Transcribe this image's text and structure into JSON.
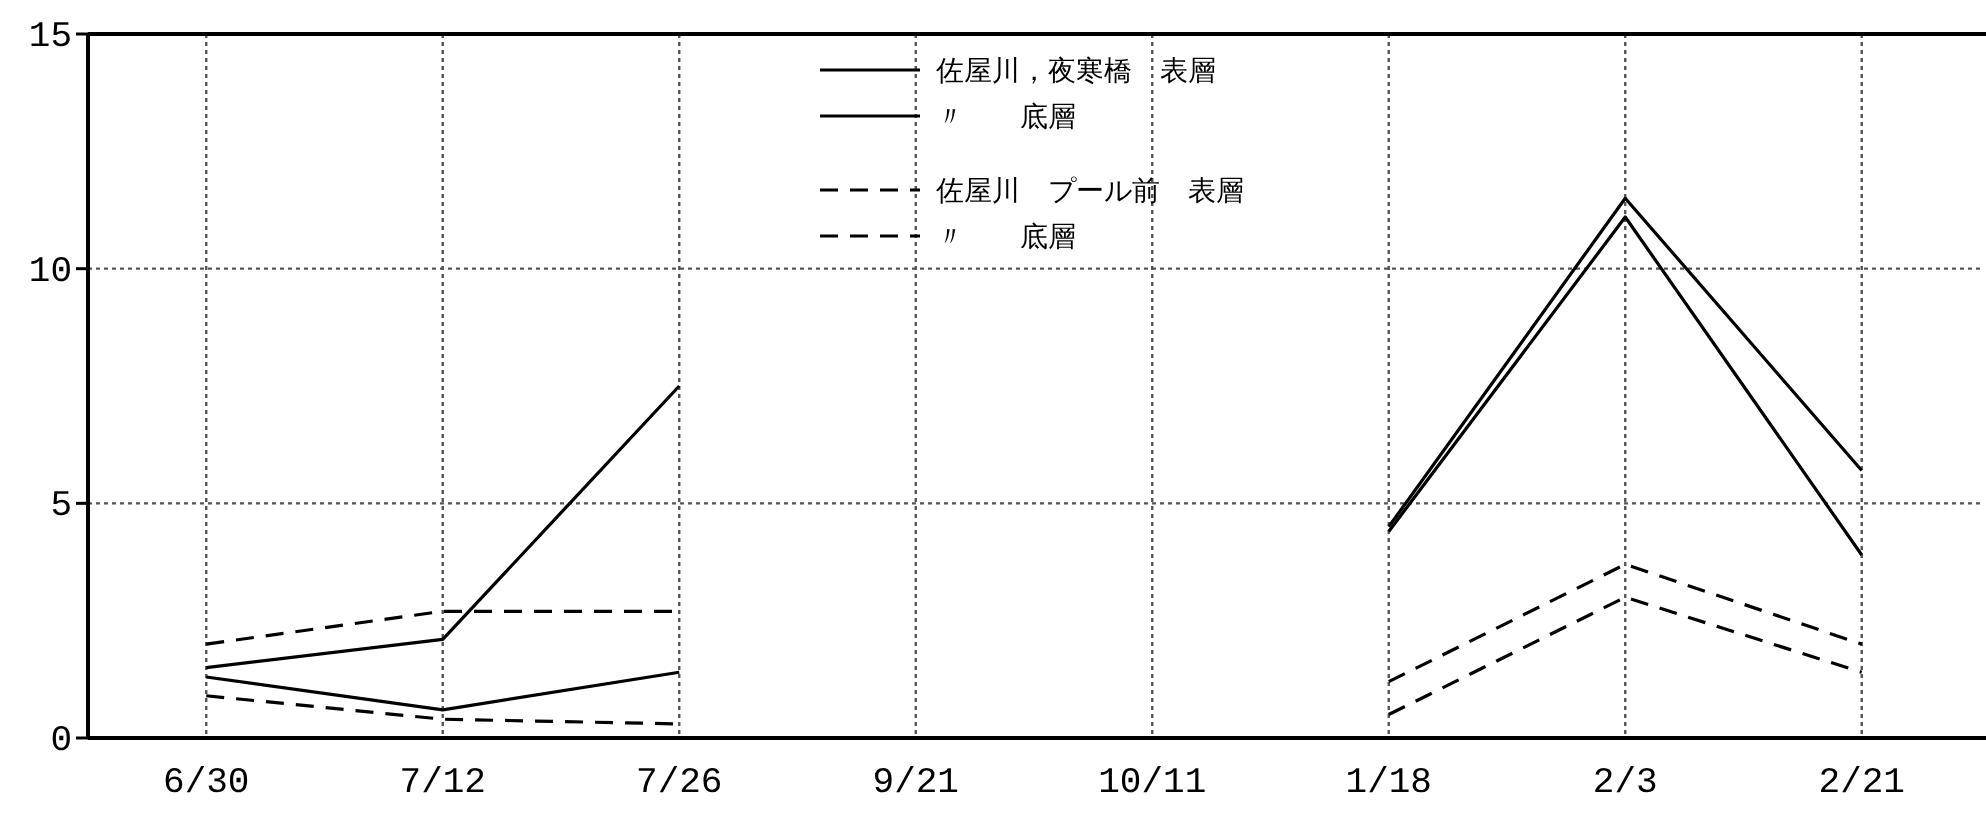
{
  "chart_data": {
    "type": "line",
    "categories": [
      "6/30",
      "7/12",
      "7/26",
      "9/21",
      "10/11",
      "1/18",
      "2/3",
      "2/21"
    ],
    "series": [
      {
        "name": "佐屋川，夜寒橋　表層",
        "color": "#000000",
        "line_style": "solid",
        "values": [
          1.5,
          2.1,
          7.5,
          null,
          null,
          4.5,
          11.5,
          5.7
        ]
      },
      {
        "name": "〃　　底層",
        "color": "#000000",
        "line_style": "solid",
        "values": [
          1.3,
          0.6,
          1.4,
          null,
          null,
          4.4,
          11.1,
          3.9
        ]
      },
      {
        "name": "佐屋川　プール前　表層",
        "color": "#000000",
        "line_style": "dashed",
        "values": [
          2.0,
          2.7,
          2.7,
          null,
          null,
          1.2,
          3.7,
          2.0
        ]
      },
      {
        "name": "〃　　底層",
        "color": "#000000",
        "line_style": "dashed",
        "values": [
          0.9,
          0.4,
          0.3,
          null,
          null,
          0.5,
          3.0,
          1.4
        ]
      }
    ],
    "ylim": [
      0,
      15
    ],
    "yticks": [
      0,
      5,
      10,
      15
    ],
    "grid": true,
    "legend": "top",
    "marker": "none"
  }
}
